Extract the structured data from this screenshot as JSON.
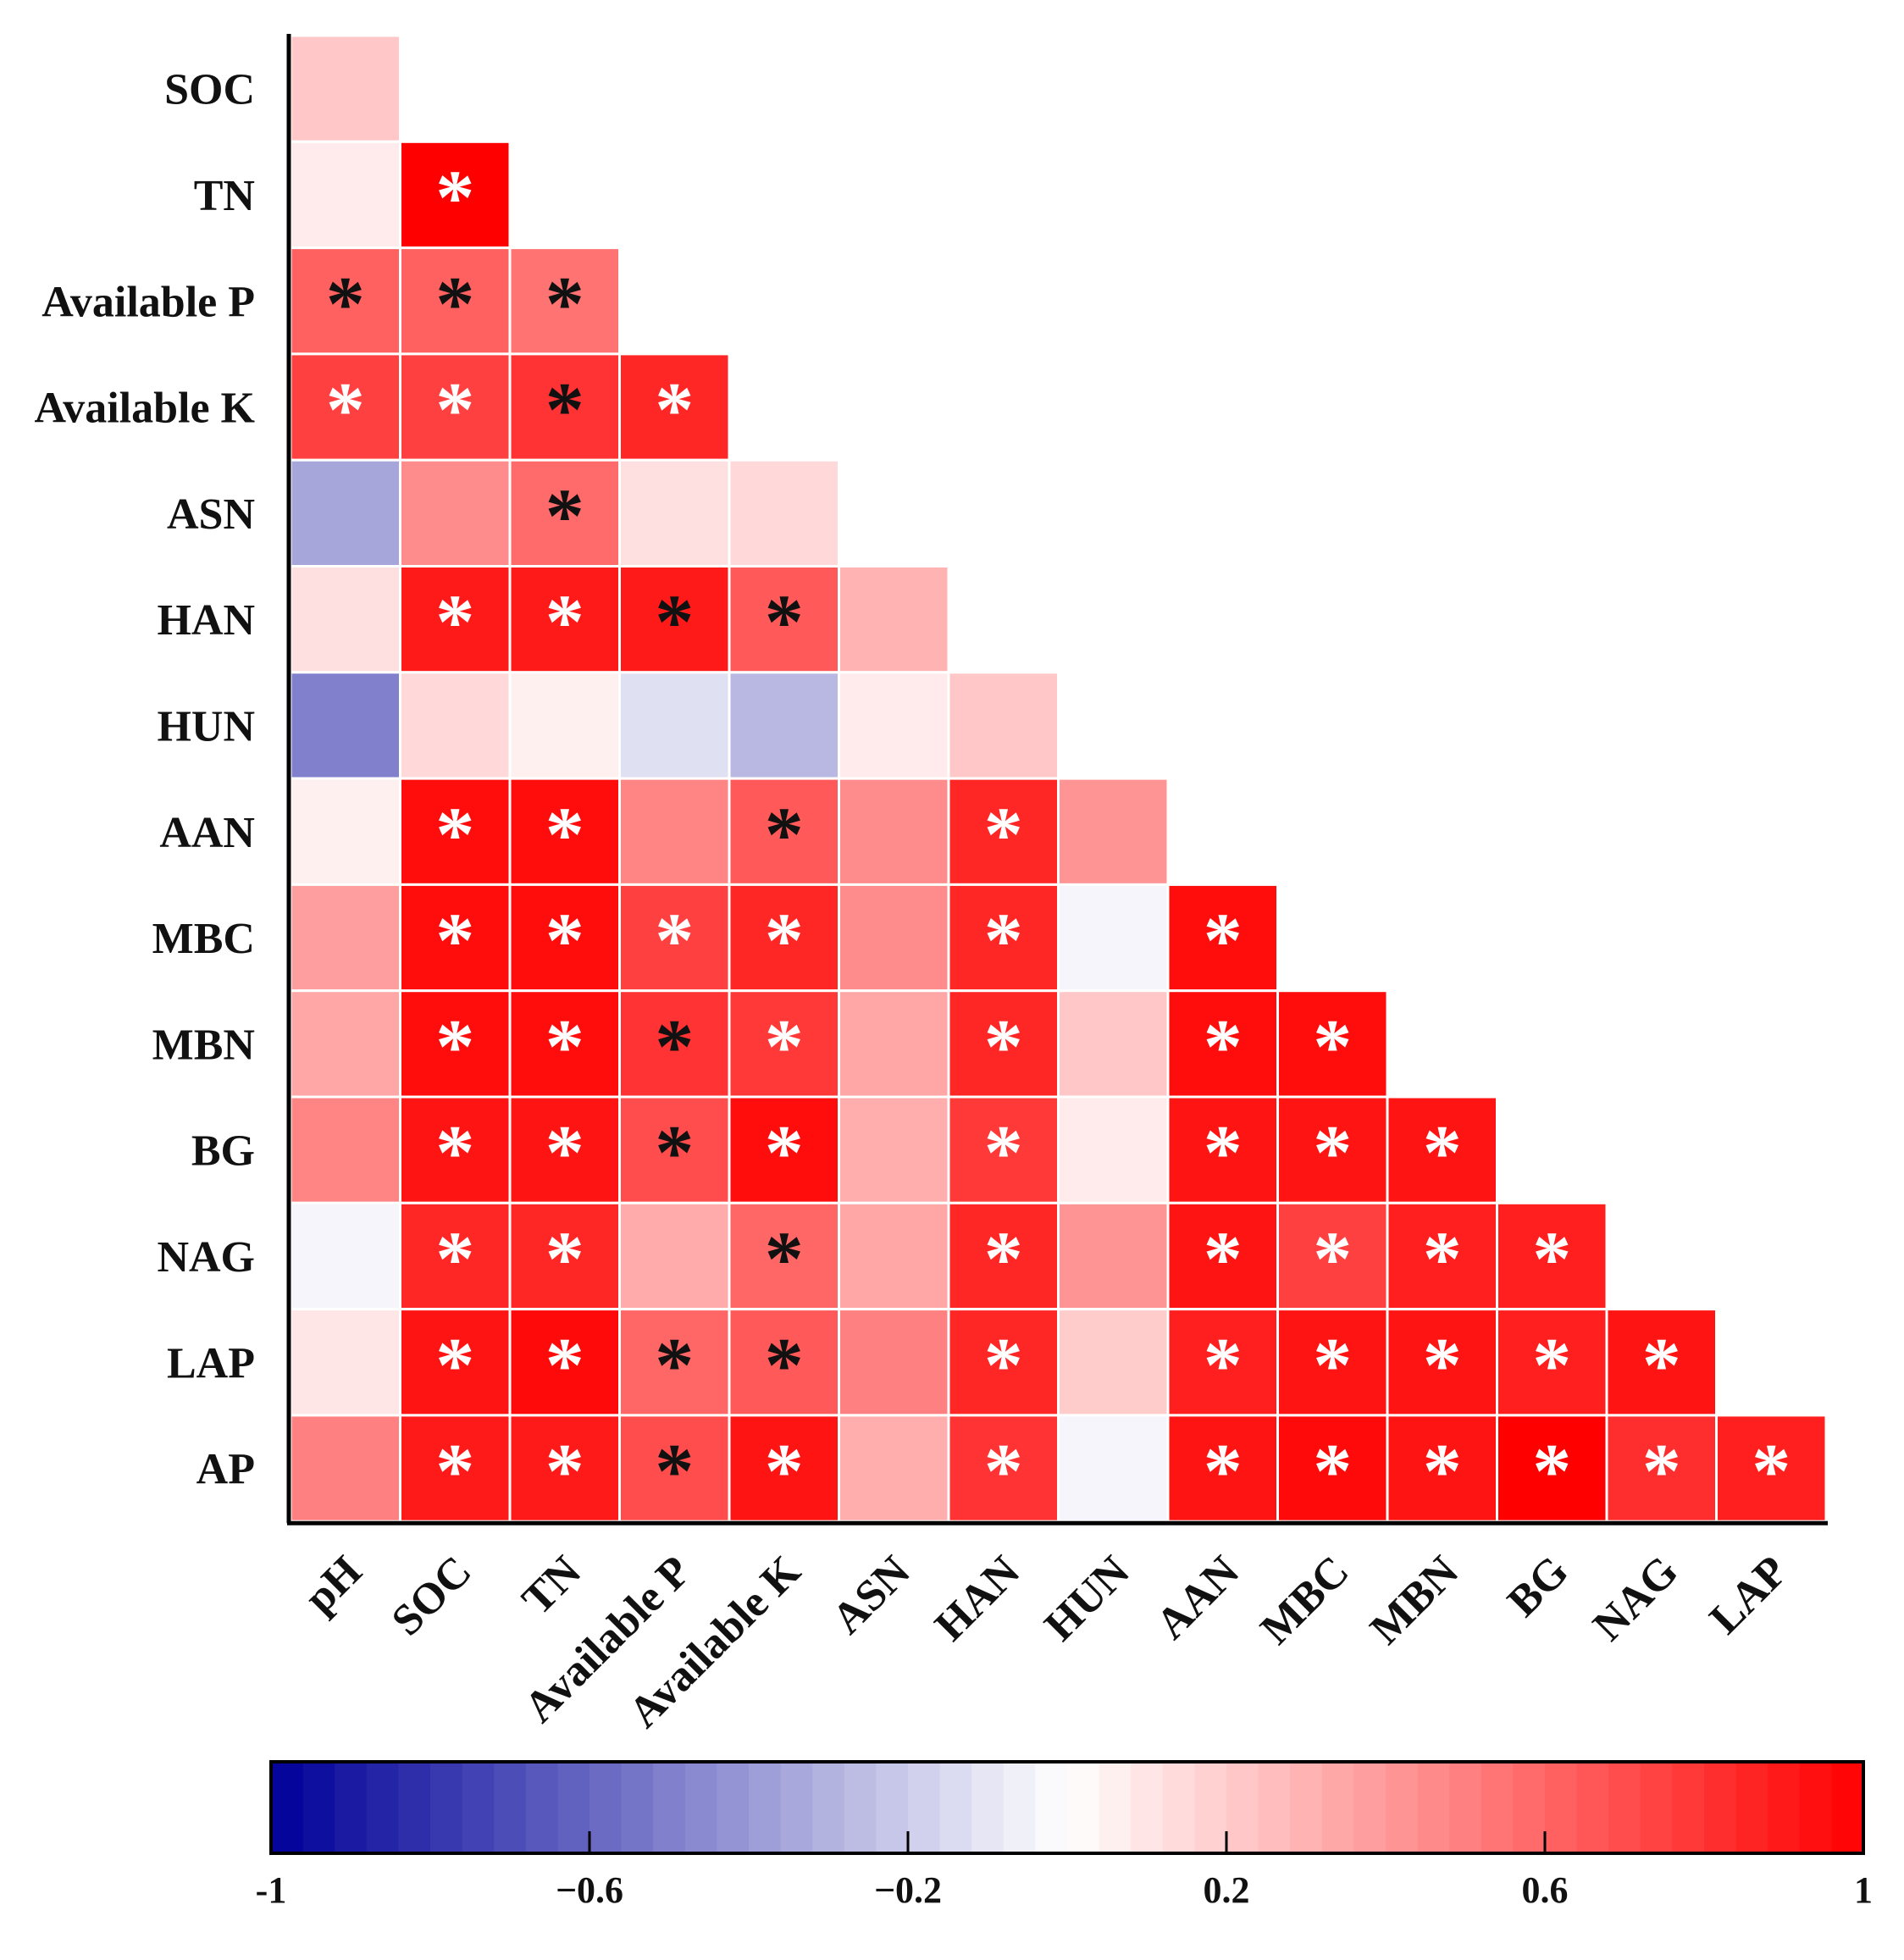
{
  "chart_data": {
    "type": "heatmap",
    "title": "",
    "variables": [
      "pH",
      "SOC",
      "TN",
      "Available P",
      "Available K",
      "ASN",
      "HAN",
      "HUN",
      "AAN",
      "MBC",
      "MBN",
      "BG",
      "NAG",
      "LAP",
      "AP"
    ],
    "row_labels": [
      "SOC",
      "TN",
      "Available P",
      "Available K",
      "ASN",
      "HAN",
      "HUN",
      "AAN",
      "MBC",
      "MBN",
      "BG",
      "NAG",
      "LAP",
      "AP"
    ],
    "col_labels": [
      "pH",
      "SOC",
      "TN",
      "Available P",
      "Available K",
      "ASN",
      "HAN",
      "HUN",
      "AAN",
      "MBC",
      "MBN",
      "BG",
      "NAG",
      "LAP"
    ],
    "values": [
      [
        0.22
      ],
      [
        0.08,
        1.0
      ],
      [
        0.62,
        0.62,
        0.55
      ],
      [
        0.75,
        0.75,
        0.8,
        0.85
      ],
      [
        -0.35,
        0.45,
        0.58,
        0.12,
        0.15
      ],
      [
        0.12,
        0.9,
        0.9,
        0.9,
        0.65,
        0.3
      ],
      [
        -0.5,
        0.15,
        0.06,
        -0.12,
        -0.28,
        0.08,
        0.22
      ],
      [
        0.06,
        0.95,
        0.95,
        0.48,
        0.65,
        0.45,
        0.85,
        0.42
      ],
      [
        0.38,
        0.95,
        0.95,
        0.75,
        0.85,
        0.45,
        0.85,
        -0.04,
        0.95
      ],
      [
        0.35,
        0.95,
        0.95,
        0.8,
        0.78,
        0.35,
        0.85,
        0.22,
        0.95,
        0.95
      ],
      [
        0.48,
        0.92,
        0.92,
        0.7,
        0.95,
        0.32,
        0.78,
        0.08,
        0.92,
        0.92,
        0.92
      ],
      [
        -0.04,
        0.85,
        0.85,
        0.33,
        0.6,
        0.35,
        0.85,
        0.42,
        0.92,
        0.75,
        0.88,
        0.88
      ],
      [
        0.1,
        0.92,
        0.96,
        0.6,
        0.65,
        0.5,
        0.85,
        0.2,
        0.88,
        0.92,
        0.92,
        0.88,
        0.92
      ],
      [
        0.5,
        0.9,
        0.9,
        0.7,
        0.92,
        0.32,
        0.8,
        -0.04,
        0.92,
        0.96,
        0.92,
        1.0,
        0.82,
        0.88
      ]
    ],
    "significance": [
      [
        ""
      ],
      [
        "",
        "w"
      ],
      [
        "b",
        "b",
        "b"
      ],
      [
        "w",
        "w",
        "b",
        "w"
      ],
      [
        "",
        "",
        "b",
        "",
        ""
      ],
      [
        "",
        "w",
        "w",
        "b",
        "b",
        ""
      ],
      [
        "",
        "",
        "",
        "",
        "",
        "",
        ""
      ],
      [
        "",
        "w",
        "w",
        "",
        "b",
        "",
        "w",
        ""
      ],
      [
        "",
        "w",
        "w",
        "w",
        "w",
        "",
        "w",
        "",
        "w"
      ],
      [
        "",
        "w",
        "w",
        "b",
        "w",
        "",
        "w",
        "",
        "w",
        "w"
      ],
      [
        "",
        "w",
        "w",
        "b",
        "w",
        "",
        "w",
        "",
        "w",
        "w",
        "w"
      ],
      [
        "",
        "w",
        "w",
        "",
        "b",
        "",
        "w",
        "",
        "w",
        "w",
        "w",
        "w"
      ],
      [
        "",
        "w",
        "w",
        "b",
        "b",
        "",
        "w",
        "",
        "w",
        "w",
        "w",
        "w",
        "w"
      ],
      [
        "",
        "w",
        "w",
        "b",
        "w",
        "",
        "w",
        "",
        "w",
        "w",
        "w",
        "w",
        "w",
        "w"
      ]
    ],
    "significance_symbol": "*",
    "colorbar": {
      "range": [
        -1,
        1
      ],
      "ticks": [
        "-1",
        "−0.6",
        "−0.2",
        "0.2",
        "0.6",
        "1"
      ],
      "tick_values": [
        -1,
        -0.6,
        -0.2,
        0.2,
        0.6,
        1
      ],
      "low_color": "#000099",
      "mid_color": "#ffffff",
      "high_color": "#ff0000"
    }
  }
}
